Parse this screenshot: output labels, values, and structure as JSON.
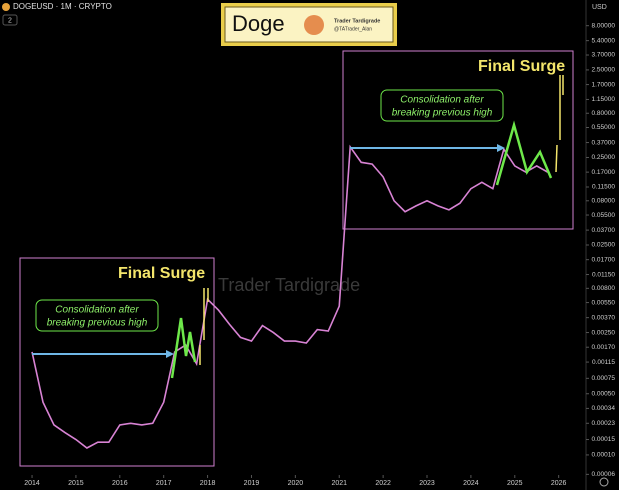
{
  "chart_data": {
    "type": "line",
    "title": "DOGEUSD · 1M · CRYPTO",
    "interval_badge": "2",
    "currency": "USD",
    "logo": {
      "name": "Doge",
      "line1": "Trader Tardigrade",
      "line2": "@TATrader_Alan"
    },
    "watermark": "Trader Tardigrade",
    "annotations": [
      {
        "heading": "Final Surge",
        "note": [
          "Consolidation after",
          "breaking previous high"
        ]
      },
      {
        "heading": "Final Surge",
        "note": [
          "Consolidation after",
          "breaking previous high"
        ]
      }
    ],
    "log_scale": true,
    "series": [
      {
        "name": "DOGEUSD",
        "color": "#d883d4",
        "x": [
          2014.0,
          2014.25,
          2014.5,
          2014.75,
          2015.0,
          2015.25,
          2015.5,
          2015.75,
          2016.0,
          2016.25,
          2016.5,
          2016.75,
          2017.0,
          2017.25,
          2017.5,
          2017.75,
          2018.0,
          2018.25,
          2018.5,
          2018.75,
          2019.0,
          2019.25,
          2019.5,
          2019.75,
          2020.0,
          2020.25,
          2020.5,
          2020.75,
          2021.0,
          2021.25,
          2021.5,
          2021.75,
          2022.0,
          2022.25,
          2022.5,
          2022.75,
          2023.0,
          2023.25,
          2023.5,
          2023.75,
          2024.0,
          2024.25,
          2024.5,
          2024.75,
          2025.0,
          2025.25,
          2025.5,
          2025.75
        ],
        "values": [
          0.0015,
          0.0004,
          0.00022,
          0.00018,
          0.00015,
          0.00012,
          0.00014,
          0.00014,
          0.00022,
          0.00023,
          0.00022,
          0.00023,
          0.0004,
          0.0015,
          0.0018,
          0.0011,
          0.006,
          0.0045,
          0.0031,
          0.0022,
          0.002,
          0.003,
          0.0025,
          0.002,
          0.002,
          0.0019,
          0.0027,
          0.0026,
          0.005,
          0.33,
          0.22,
          0.21,
          0.15,
          0.08,
          0.06,
          0.07,
          0.08,
          0.07,
          0.063,
          0.075,
          0.11,
          0.13,
          0.11,
          0.31,
          0.2,
          0.17,
          0.2,
          0.17
        ]
      }
    ],
    "xlim": [
      2013.27,
      2026.6
    ],
    "xticks": [
      2014,
      2015,
      2016,
      2017,
      2018,
      2019,
      2020,
      2021,
      2022,
      2023,
      2024,
      2025,
      2026
    ],
    "ylim": [
      5.9e-05,
      10.6
    ],
    "yticks": [
      {
        "value": 8.0,
        "label": "8.00000"
      },
      {
        "value": 5.4,
        "label": "5.40000"
      },
      {
        "value": 3.7,
        "label": "3.70000"
      },
      {
        "value": 2.5,
        "label": "2.50000"
      },
      {
        "value": 1.7,
        "label": "1.70000"
      },
      {
        "value": 1.15,
        "label": "1.15000"
      },
      {
        "value": 0.8,
        "label": "0.80000"
      },
      {
        "value": 0.55,
        "label": "0.55000"
      },
      {
        "value": 0.37,
        "label": "0.37000"
      },
      {
        "value": 0.25,
        "label": "0.25000"
      },
      {
        "value": 0.17,
        "label": "0.17000"
      },
      {
        "value": 0.115,
        "label": "0.11500"
      },
      {
        "value": 0.08,
        "label": "0.08000"
      },
      {
        "value": 0.055,
        "label": "0.05500"
      },
      {
        "value": 0.037,
        "label": "0.03700"
      },
      {
        "value": 0.025,
        "label": "0.02500"
      },
      {
        "value": 0.017,
        "label": "0.01700"
      },
      {
        "value": 0.0115,
        "label": "0.01150"
      },
      {
        "value": 0.008,
        "label": "0.00800"
      },
      {
        "value": 0.0055,
        "label": "0.00550"
      },
      {
        "value": 0.0037,
        "label": "0.00370"
      },
      {
        "value": 0.0025,
        "label": "0.00250"
      },
      {
        "value": 0.0017,
        "label": "0.00170"
      },
      {
        "value": 0.00115,
        "label": "0.00115"
      },
      {
        "value": 0.00075,
        "label": "0.00075"
      },
      {
        "value": 0.0005,
        "label": "0.00050"
      },
      {
        "value": 0.00034,
        "label": "0.00034"
      },
      {
        "value": 0.00023,
        "label": "0.00023"
      },
      {
        "value": 0.00015,
        "label": "0.00015"
      },
      {
        "value": 0.0001,
        "label": "0.00010"
      },
      {
        "value": 6e-05,
        "label": "0.00006"
      }
    ],
    "grid": false
  }
}
